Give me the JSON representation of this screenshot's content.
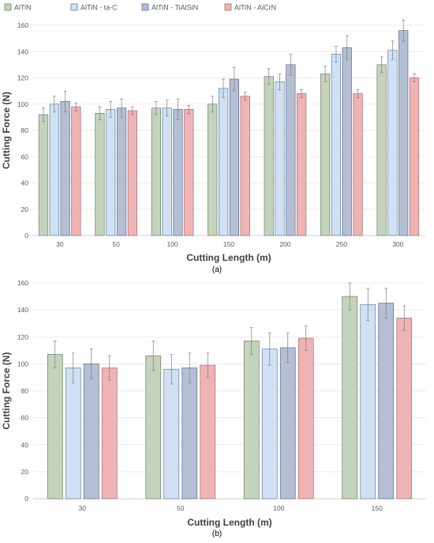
{
  "legend": {
    "entries": [
      {
        "label": "AlTiN",
        "color": "#c4d3bb"
      },
      {
        "label": "AlTiN - ta-C",
        "color": "#cfe1f3"
      },
      {
        "label": "AlTiN - TiAlSiN",
        "color": "#b4bfd3"
      },
      {
        "label": "AlTiN - AlCrN",
        "color": "#eeb3b4"
      }
    ]
  },
  "chart_data": [
    {
      "type": "bar",
      "panel_label": "(a)",
      "xlabel": "Cutting Length (m)",
      "ylabel": "Cutting Force (N)",
      "categories": [
        "30",
        "50",
        "100",
        "150",
        "200",
        "250",
        "300"
      ],
      "ylim": [
        0,
        160
      ],
      "yticks": [
        0,
        20,
        40,
        60,
        80,
        100,
        120,
        140,
        160
      ],
      "grid": true,
      "legend_position": "top-left",
      "series": [
        {
          "name": "AlTiN",
          "values": [
            92,
            93,
            97,
            100,
            121,
            123,
            130
          ],
          "errors": [
            5,
            5,
            5,
            6,
            6,
            6,
            6
          ]
        },
        {
          "name": "AlTiN - ta-C",
          "values": [
            100,
            96,
            97,
            112,
            117,
            138,
            141
          ],
          "errors": [
            6,
            6,
            6,
            7,
            6,
            6,
            7
          ]
        },
        {
          "name": "AlTiN - TiAlSiN",
          "values": [
            102,
            97,
            96,
            119,
            130,
            143,
            156
          ],
          "errors": [
            8,
            7,
            8,
            9,
            8,
            9,
            8
          ]
        },
        {
          "name": "AlTiN - AlCrN",
          "values": [
            98,
            95,
            96,
            106,
            108,
            108,
            120
          ],
          "errors": [
            3,
            3,
            3,
            3,
            3,
            3,
            3
          ]
        }
      ]
    },
    {
      "type": "bar",
      "panel_label": "(b)",
      "xlabel": "Cutting Length (m)",
      "ylabel": "Cutting Force (N)",
      "categories": [
        "30",
        "50",
        "100",
        "150"
      ],
      "ylim": [
        0,
        160
      ],
      "yticks": [
        0,
        20,
        40,
        60,
        80,
        100,
        120,
        140,
        160
      ],
      "grid": true,
      "series": [
        {
          "name": "AlTiN",
          "values": [
            107,
            106,
            117,
            150
          ],
          "errors": [
            10,
            11,
            10,
            10
          ]
        },
        {
          "name": "AlTiN - ta-C",
          "values": [
            97,
            96,
            111,
            144
          ],
          "errors": [
            11,
            11,
            12,
            12
          ]
        },
        {
          "name": "AlTiN - TiAlSiN",
          "values": [
            100,
            97,
            112,
            145
          ],
          "errors": [
            11,
            11,
            11,
            11
          ]
        },
        {
          "name": "AlTiN - AlCrN",
          "values": [
            97,
            99,
            119,
            134
          ],
          "errors": [
            9,
            9,
            9,
            9
          ]
        }
      ]
    }
  ]
}
